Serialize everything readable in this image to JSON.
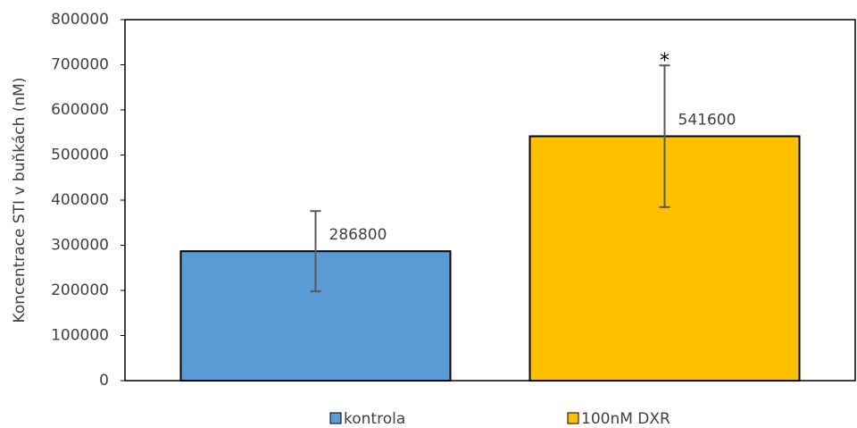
{
  "chart_data": {
    "type": "bar",
    "y_label": "Koncentrace STI v buňkách (nM)",
    "categories": [
      null
    ],
    "series": [
      {
        "name": "kontrola",
        "color": "#5b9bd5",
        "values": [
          286800
        ],
        "errors": [
          89000
        ]
      },
      {
        "name": "100nM DXR",
        "color": "#ffc000",
        "values": [
          541600
        ],
        "errors": [
          157000
        ],
        "annotations": [
          "*"
        ]
      }
    ],
    "ylim": [
      0,
      800000
    ],
    "yticks": [
      0,
      100000,
      200000,
      300000,
      400000,
      500000,
      600000,
      700000,
      800000
    ],
    "grid": false,
    "legend": "bottom"
  }
}
